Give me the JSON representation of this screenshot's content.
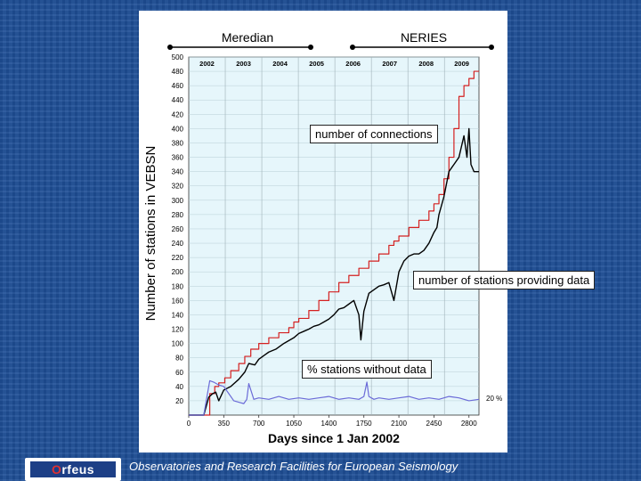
{
  "slide": {
    "label_meredian": "Meredian",
    "label_neries": "NERIES",
    "callout_connections": "number of connections",
    "callout_providing": "number of stations providing data",
    "callout_without": "% stations without data",
    "pct_label": "20 %",
    "footer_text": "Observatories and Research Facilities for European Seismology",
    "logo_text_a": "O",
    "logo_text_b": "rfeus"
  },
  "chart_data": {
    "type": "line",
    "title": "",
    "xlabel": "Days since 1 Jan 2002",
    "ylabel": "Number of stations in VEBSN",
    "xlim": [
      0,
      2900
    ],
    "ylim": [
      0,
      500
    ],
    "x_ticks": [
      "0",
      "350",
      "700",
      "1050",
      "1400",
      "1750",
      "2100",
      "2450",
      "2800"
    ],
    "y_ticks": [
      "20",
      "40",
      "60",
      "80",
      "100",
      "120",
      "140",
      "160",
      "180",
      "200",
      "220",
      "240",
      "260",
      "280",
      "300",
      "320",
      "340",
      "360",
      "380",
      "400",
      "420",
      "440",
      "460",
      "480",
      "500"
    ],
    "year_labels": [
      "2002",
      "2003",
      "2004",
      "2005",
      "2006",
      "2007",
      "2008",
      "2009"
    ],
    "grid": true,
    "colors": {
      "connections": "#d42020",
      "providing": "#000000",
      "without": "#6b6bd8",
      "plot_bg": "#e6f6fb"
    },
    "series": [
      {
        "name": "number of connections",
        "x": [
          0,
          150,
          210,
          260,
          300,
          360,
          420,
          500,
          560,
          620,
          700,
          800,
          900,
          1000,
          1050,
          1100,
          1200,
          1300,
          1400,
          1500,
          1600,
          1700,
          1800,
          1900,
          2000,
          2050,
          2100,
          2200,
          2300,
          2400,
          2450,
          2500,
          2550,
          2600,
          2650,
          2700,
          2750,
          2800,
          2850,
          2900
        ],
        "values": [
          0,
          0,
          30,
          40,
          45,
          52,
          62,
          72,
          82,
          92,
          100,
          108,
          115,
          122,
          130,
          135,
          146,
          160,
          172,
          185,
          195,
          205,
          215,
          225,
          237,
          243,
          250,
          262,
          272,
          285,
          295,
          308,
          330,
          360,
          400,
          445,
          460,
          470,
          480,
          480
        ]
      },
      {
        "name": "number of stations providing data",
        "x": [
          0,
          150,
          200,
          240,
          270,
          300,
          350,
          420,
          500,
          560,
          600,
          660,
          700,
          760,
          800,
          870,
          950,
          1000,
          1050,
          1100,
          1150,
          1200,
          1250,
          1300,
          1350,
          1400,
          1450,
          1500,
          1550,
          1600,
          1650,
          1700,
          1720,
          1750,
          1780,
          1800,
          1850,
          1900,
          1950,
          2000,
          2050,
          2100,
          2150,
          2200,
          2250,
          2300,
          2350,
          2400,
          2450,
          2480,
          2500,
          2550,
          2600,
          2650,
          2700,
          2750,
          2780,
          2800,
          2820,
          2850,
          2900
        ],
        "values": [
          0,
          0,
          25,
          30,
          32,
          20,
          35,
          40,
          50,
          60,
          72,
          70,
          78,
          84,
          88,
          92,
          100,
          104,
          108,
          114,
          117,
          120,
          124,
          126,
          130,
          134,
          140,
          148,
          150,
          155,
          160,
          140,
          105,
          145,
          160,
          170,
          175,
          180,
          182,
          185,
          160,
          200,
          215,
          222,
          225,
          225,
          230,
          240,
          255,
          262,
          280,
          305,
          340,
          350,
          360,
          390,
          360,
          400,
          350,
          340,
          340
        ]
      },
      {
        "name": "% stations without data",
        "x": [
          0,
          150,
          210,
          250,
          300,
          350,
          400,
          450,
          500,
          550,
          580,
          600,
          650,
          700,
          800,
          900,
          1000,
          1100,
          1200,
          1300,
          1400,
          1500,
          1600,
          1700,
          1750,
          1780,
          1800,
          1850,
          1900,
          2000,
          2100,
          2200,
          2300,
          2400,
          2500,
          2600,
          2700,
          2800,
          2900
        ],
        "values": [
          0,
          0,
          48,
          46,
          42,
          40,
          30,
          20,
          18,
          16,
          22,
          44,
          22,
          24,
          22,
          26,
          22,
          24,
          22,
          24,
          26,
          22,
          24,
          22,
          26,
          46,
          26,
          22,
          24,
          22,
          24,
          26,
          22,
          24,
          22,
          26,
          24,
          20,
          22
        ]
      }
    ]
  }
}
